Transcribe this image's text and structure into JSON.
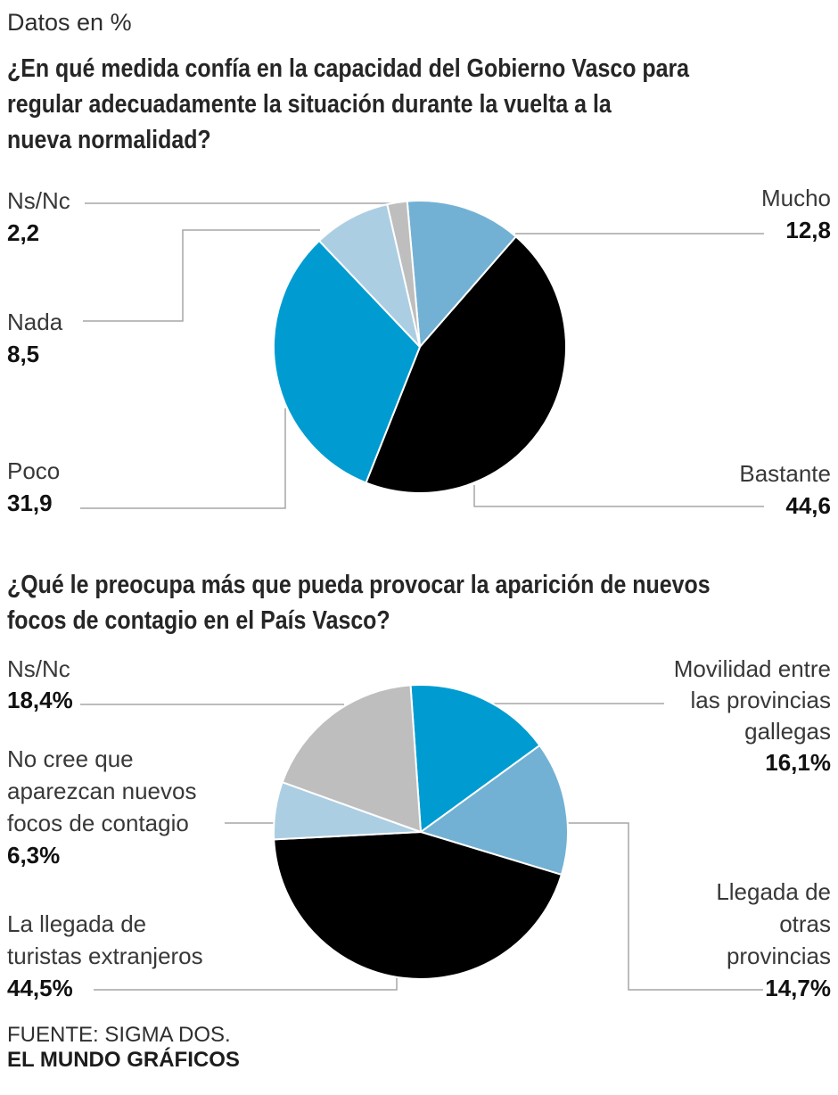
{
  "meta": {
    "units_label": "Datos en %",
    "source_line1": "FUENTE: SIGMA DOS.",
    "source_line2": "EL MUNDO GRÁFICOS"
  },
  "colors": {
    "cyan": "#009CD1",
    "steel_blue": "#73B1D4",
    "light_blue": "#ACCEE3",
    "gray": "#BEBEBE",
    "black": "#000000",
    "leader_line": "#A6A6A6"
  },
  "chart_data": [
    {
      "type": "pie",
      "title": "¿En qué medida confía en la capacidad del Gobierno Vasco para\nregular adecuadamente la situación durante la vuelta a la\nnueva normalidad?",
      "units": "percent",
      "start_angle_deg": -5,
      "legend_position": "callout-labels",
      "slices": [
        {
          "label": "Mucho",
          "value": 12.8,
          "display": "12,8",
          "color": "#73B1D4"
        },
        {
          "label": "Bastante",
          "value": 44.6,
          "display": "44,6",
          "color": "#000000"
        },
        {
          "label": "Poco",
          "value": 31.9,
          "display": "31,9",
          "color": "#009CD1"
        },
        {
          "label": "Nada",
          "value": 8.5,
          "display": "8,5",
          "color": "#ACCEE3"
        },
        {
          "label": "Ns/Nc",
          "value": 2.2,
          "display": "2,2",
          "color": "#BEBEBE"
        }
      ]
    },
    {
      "type": "pie",
      "title": "¿Qué le preocupa más que pueda provocar la aparición de nuevos\nfocos de contagio en el País Vasco?",
      "units": "percent",
      "start_angle_deg": -4,
      "legend_position": "callout-labels",
      "slices": [
        {
          "label": "Movilidad entre\nlas provincias\ngallegas",
          "value": 16.1,
          "display": "16,1%",
          "color": "#009CD1"
        },
        {
          "label": "Llegada de\notras\nprovincias",
          "value": 14.7,
          "display": "14,7%",
          "color": "#73B1D4"
        },
        {
          "label": "La llegada de\nturistas extranjeros",
          "value": 44.5,
          "display": "44,5%",
          "color": "#000000"
        },
        {
          "label": "No cree que\naparezcan nuevos\nfocos de contagio",
          "value": 6.3,
          "display": "6,3%",
          "color": "#ACCEE3"
        },
        {
          "label": "Ns/Nc",
          "value": 18.4,
          "display": "18,4%",
          "color": "#BEBEBE"
        }
      ]
    }
  ]
}
